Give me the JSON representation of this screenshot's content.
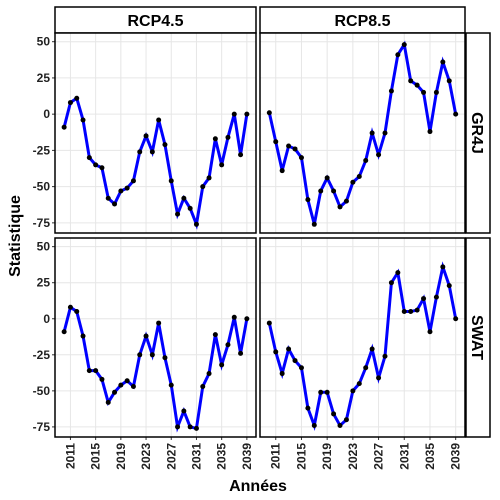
{
  "chart_data": {
    "type": "line",
    "xlabel": "Années",
    "ylabel": "Statistique",
    "columns": [
      "RCP4.5",
      "RCP8.5"
    ],
    "rows": [
      "GR4J",
      "SWAT"
    ],
    "x": [
      2010,
      2011,
      2012,
      2013,
      2014,
      2015,
      2016,
      2017,
      2018,
      2019,
      2020,
      2021,
      2022,
      2023,
      2024,
      2025,
      2026,
      2027,
      2028,
      2029,
      2030,
      2031,
      2032,
      2033,
      2034,
      2035,
      2036,
      2037,
      2038,
      2039
    ],
    "panels": [
      {
        "values": [
          -9,
          8,
          11,
          -4,
          -30,
          -35,
          -37,
          -58,
          -62,
          -53,
          -51,
          -46,
          -26,
          -15,
          -26,
          -4,
          -21,
          -46,
          -69,
          -58,
          -65,
          -76,
          -50,
          -44,
          -17,
          -35,
          -16,
          0,
          -28,
          0
        ]
      },
      {
        "values": [
          1,
          -19,
          -39,
          -22,
          -24,
          -30,
          -59,
          -76,
          -53,
          -44,
          -53,
          -64,
          -60,
          -47,
          -43,
          -32,
          -13,
          -28,
          -13,
          16,
          41,
          48,
          23,
          20,
          15,
          -12,
          15,
          36,
          23,
          0
        ]
      },
      {
        "values": [
          -9,
          8,
          5,
          -12,
          -36,
          -36,
          -42,
          -58,
          -51,
          -46,
          -43,
          -47,
          -25,
          -12,
          -25,
          -3,
          -27,
          -46,
          -75,
          -64,
          -75,
          -76,
          -47,
          -38,
          -11,
          -32,
          -18,
          1,
          -24,
          0
        ]
      },
      {
        "values": [
          -3,
          -23,
          -38,
          -21,
          -29,
          -34,
          -62,
          -74,
          -51,
          -51,
          -66,
          -74,
          -70,
          -50,
          -45,
          -34,
          -21,
          -41,
          -26,
          25,
          32,
          5,
          5,
          6,
          14,
          -9,
          15,
          36,
          23,
          0
        ]
      }
    ],
    "color": "#0000ff",
    "point_color": "#000000",
    "xlim": [
      2008.55,
      2040.45
    ],
    "xticks": [
      2011,
      2015,
      2019,
      2023,
      2027,
      2031,
      2035,
      2039
    ],
    "ylim": [
      -82,
      56
    ],
    "yticks": [
      -75,
      -50,
      -25,
      0,
      25,
      50
    ],
    "grid": true
  }
}
